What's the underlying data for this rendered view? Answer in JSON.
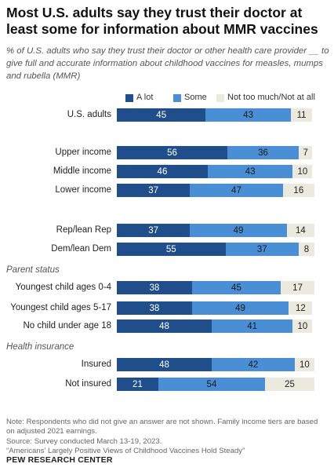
{
  "title": "Most U.S. adults say they trust their doctor at least some for information about MMR vaccines",
  "subtitle": "% of U.S. adults who say they trust their doctor or other health care provider __ to give full and accurate information about childhood vaccines for measles, mumps and rubella (MMR)",
  "legend": [
    {
      "label": "A lot",
      "color": "#1f4e8b"
    },
    {
      "label": "Some",
      "color": "#4a8fd6"
    },
    {
      "label": "Not too much/Not at all",
      "color": "#ece9df"
    }
  ],
  "sections": {
    "parent": "Parent status",
    "insurance": "Health insurance"
  },
  "notes": {
    "note_line1": "Note: Respondents who did not give an answer are not shown. Family income tiers are based",
    "note_line2": "on adjusted 2021 earnings.",
    "source": "Source: Survey conducted March 13-19, 2023.",
    "report": "“Americans’ Largely Positive Views of Childhood Vaccines Hold Steady”",
    "org": "PEW RESEARCH CENTER"
  },
  "chart_data": {
    "type": "bar",
    "orientation": "horizontal",
    "stacked": true,
    "categories": [
      "U.S. adults",
      "Upper income",
      "Middle income",
      "Lower income",
      "Rep/lean Rep",
      "Dem/lean Dem",
      "Youngest child ages 0-4",
      "Youngest child ages 5-17",
      "No child under age 18",
      "Insured",
      "Not insured"
    ],
    "series": [
      {
        "name": "A lot",
        "values": [
          45,
          56,
          46,
          37,
          37,
          55,
          38,
          38,
          48,
          48,
          21
        ]
      },
      {
        "name": "Some",
        "values": [
          43,
          36,
          43,
          47,
          49,
          37,
          45,
          49,
          41,
          42,
          54
        ]
      },
      {
        "name": "Not too much/Not at all",
        "values": [
          11,
          7,
          10,
          16,
          14,
          8,
          17,
          12,
          10,
          10,
          25
        ]
      }
    ]
  }
}
